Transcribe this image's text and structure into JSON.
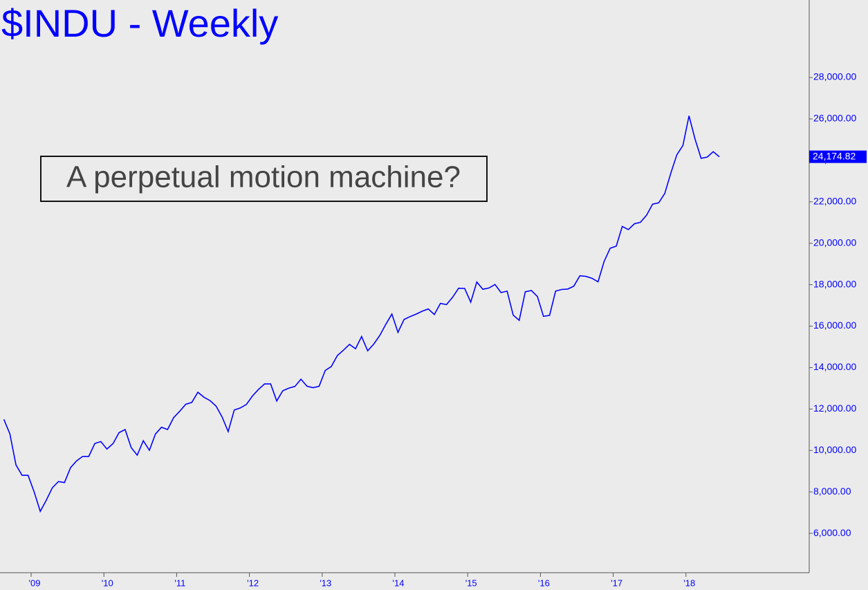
{
  "chart_data": {
    "type": "line",
    "title": "$INDU - Weekly",
    "annotation": "A perpetual motion machine?",
    "xlim": [
      2008.572,
      2019.694
    ],
    "xticks": [
      {
        "value": 2009,
        "label": "'09"
      },
      {
        "value": 2010,
        "label": "'10"
      },
      {
        "value": 2011,
        "label": "'11"
      },
      {
        "value": 2012,
        "label": "'12"
      },
      {
        "value": 2013,
        "label": "'13"
      },
      {
        "value": 2014,
        "label": "'14"
      },
      {
        "value": 2015,
        "label": "'15"
      },
      {
        "value": 2016,
        "label": "'16"
      },
      {
        "value": 2017,
        "label": "'17"
      },
      {
        "value": 2018,
        "label": "'18"
      }
    ],
    "ylim": [
      4100,
      31740
    ],
    "yticks": [
      {
        "value": 6000,
        "label": "6,000.00"
      },
      {
        "value": 8000,
        "label": "8,000.00"
      },
      {
        "value": 10000,
        "label": "10,000.00"
      },
      {
        "value": 12000,
        "label": "12,000.00"
      },
      {
        "value": 14000,
        "label": "14,000.00"
      },
      {
        "value": 16000,
        "label": "16,000.00"
      },
      {
        "value": 18000,
        "label": "18,000.00"
      },
      {
        "value": 20000,
        "label": "20,000.00"
      },
      {
        "value": 22000,
        "label": "22,000.00"
      },
      {
        "value": 24000,
        "label": "24,000.00"
      },
      {
        "value": 26000,
        "label": "26,000.00"
      },
      {
        "value": 28000,
        "label": "28,000.00"
      }
    ],
    "price_tag": {
      "value": 24174.82,
      "label": "24,174.82"
    },
    "series": [
      {
        "color": "#0000ff",
        "x": [
          2008.625,
          2008.708,
          2008.792,
          2008.875,
          2008.958,
          2009.042,
          2009.125,
          2009.208,
          2009.292,
          2009.375,
          2009.458,
          2009.542,
          2009.625,
          2009.708,
          2009.792,
          2009.875,
          2009.958,
          2010.042,
          2010.125,
          2010.208,
          2010.292,
          2010.375,
          2010.458,
          2010.542,
          2010.625,
          2010.708,
          2010.792,
          2010.875,
          2010.958,
          2011.042,
          2011.125,
          2011.208,
          2011.292,
          2011.375,
          2011.458,
          2011.542,
          2011.625,
          2011.708,
          2011.792,
          2011.875,
          2011.958,
          2012.042,
          2012.125,
          2012.208,
          2012.292,
          2012.375,
          2012.458,
          2012.542,
          2012.625,
          2012.708,
          2012.792,
          2012.875,
          2012.958,
          2013.042,
          2013.125,
          2013.208,
          2013.292,
          2013.375,
          2013.458,
          2013.542,
          2013.625,
          2013.708,
          2013.792,
          2013.875,
          2013.958,
          2014.042,
          2014.125,
          2014.208,
          2014.292,
          2014.375,
          2014.458,
          2014.542,
          2014.625,
          2014.708,
          2014.792,
          2014.875,
          2014.958,
          2015.042,
          2015.125,
          2015.208,
          2015.292,
          2015.375,
          2015.458,
          2015.542,
          2015.625,
          2015.708,
          2015.792,
          2015.875,
          2015.958,
          2016.042,
          2016.125,
          2016.208,
          2016.292,
          2016.375,
          2016.458,
          2016.542,
          2016.625,
          2016.708,
          2016.792,
          2016.875,
          2016.958,
          2017.042,
          2017.125,
          2017.208,
          2017.292,
          2017.375,
          2017.458,
          2017.542,
          2017.625,
          2017.708,
          2017.792,
          2017.875,
          2017.958,
          2018.042,
          2018.125,
          2018.208,
          2018.292,
          2018.375,
          2018.458
        ],
        "values": [
          11500,
          10800,
          9300,
          8800,
          8800,
          8000,
          7060,
          7600,
          8200,
          8500,
          8450,
          9170,
          9500,
          9710,
          9710,
          10340,
          10430,
          10070,
          10330,
          10860,
          11010,
          10140,
          9770,
          10470,
          10010,
          10790,
          11120,
          11010,
          11580,
          11890,
          12230,
          12320,
          12810,
          12570,
          12410,
          12140,
          11610,
          10910,
          11950,
          12050,
          12220,
          12630,
          12950,
          13210,
          13210,
          12390,
          12880,
          13010,
          13090,
          13440,
          13100,
          13030,
          13100,
          13860,
          14050,
          14580,
          14840,
          15120,
          14910,
          15500,
          14810,
          15130,
          15550,
          16090,
          16580,
          15700,
          16320,
          16460,
          16580,
          16720,
          16830,
          16560,
          17100,
          17040,
          17390,
          17830,
          17820,
          17160,
          18130,
          17780,
          17840,
          18010,
          17620,
          17690,
          16530,
          16280,
          17660,
          17720,
          17430,
          16470,
          16520,
          17690,
          17770,
          17790,
          17930,
          18430,
          18400,
          18310,
          18140,
          19120,
          19760,
          19860,
          20810,
          20660,
          20940,
          21010,
          21350,
          21890,
          21950,
          22400,
          23380,
          24270,
          24720,
          26150,
          25030,
          24100,
          24160,
          24420,
          24174.82
        ]
      }
    ]
  }
}
